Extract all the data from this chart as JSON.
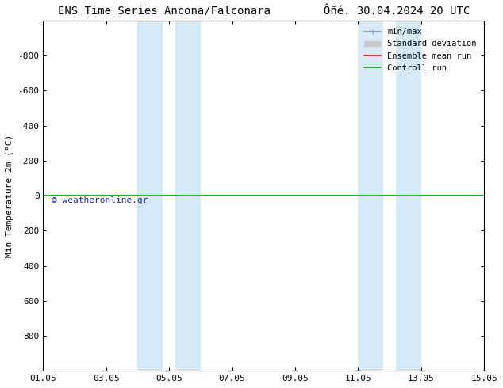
{
  "title_left": "ENS Time Series Ancona/Falconara",
  "title_right": "Ôñé. 30.04.2024 20 UTC",
  "ylabel": "Min Temperature 2m (°C)",
  "ylim_bottom": 1000,
  "ylim_top": -1000,
  "yticks": [
    -800,
    -600,
    -400,
    -200,
    0,
    200,
    400,
    600,
    800
  ],
  "xtick_labels": [
    "01.05",
    "03.05",
    "05.05",
    "07.05",
    "09.05",
    "11.05",
    "13.05",
    "15.05"
  ],
  "xtick_positions": [
    0,
    2,
    4,
    6,
    8,
    10,
    12,
    14
  ],
  "shaded_bands": [
    [
      3.0,
      3.8
    ],
    [
      4.2,
      5.0
    ],
    [
      10.0,
      10.8
    ],
    [
      11.2,
      12.0
    ]
  ],
  "green_line_y": 0,
  "watermark": "© weatheronline.gr",
  "watermark_color": "#2222cc",
  "background_color": "#ffffff",
  "plot_bg_color": "#ffffff",
  "legend_items": [
    {
      "label": "min/max",
      "color": "#909090",
      "linewidth": 1.2
    },
    {
      "label": "Standard deviation",
      "color": "#c8c8c8",
      "linewidth": 5
    },
    {
      "label": "Ensemble mean run",
      "color": "#ff0000",
      "linewidth": 1.2
    },
    {
      "label": "Controll run",
      "color": "#00aa00",
      "linewidth": 1.2
    }
  ],
  "shaded_color": "#cce4f5",
  "shaded_alpha": 0.8,
  "title_fontsize": 10,
  "tick_fontsize": 8,
  "ylabel_fontsize": 8,
  "legend_fontsize": 7.5
}
